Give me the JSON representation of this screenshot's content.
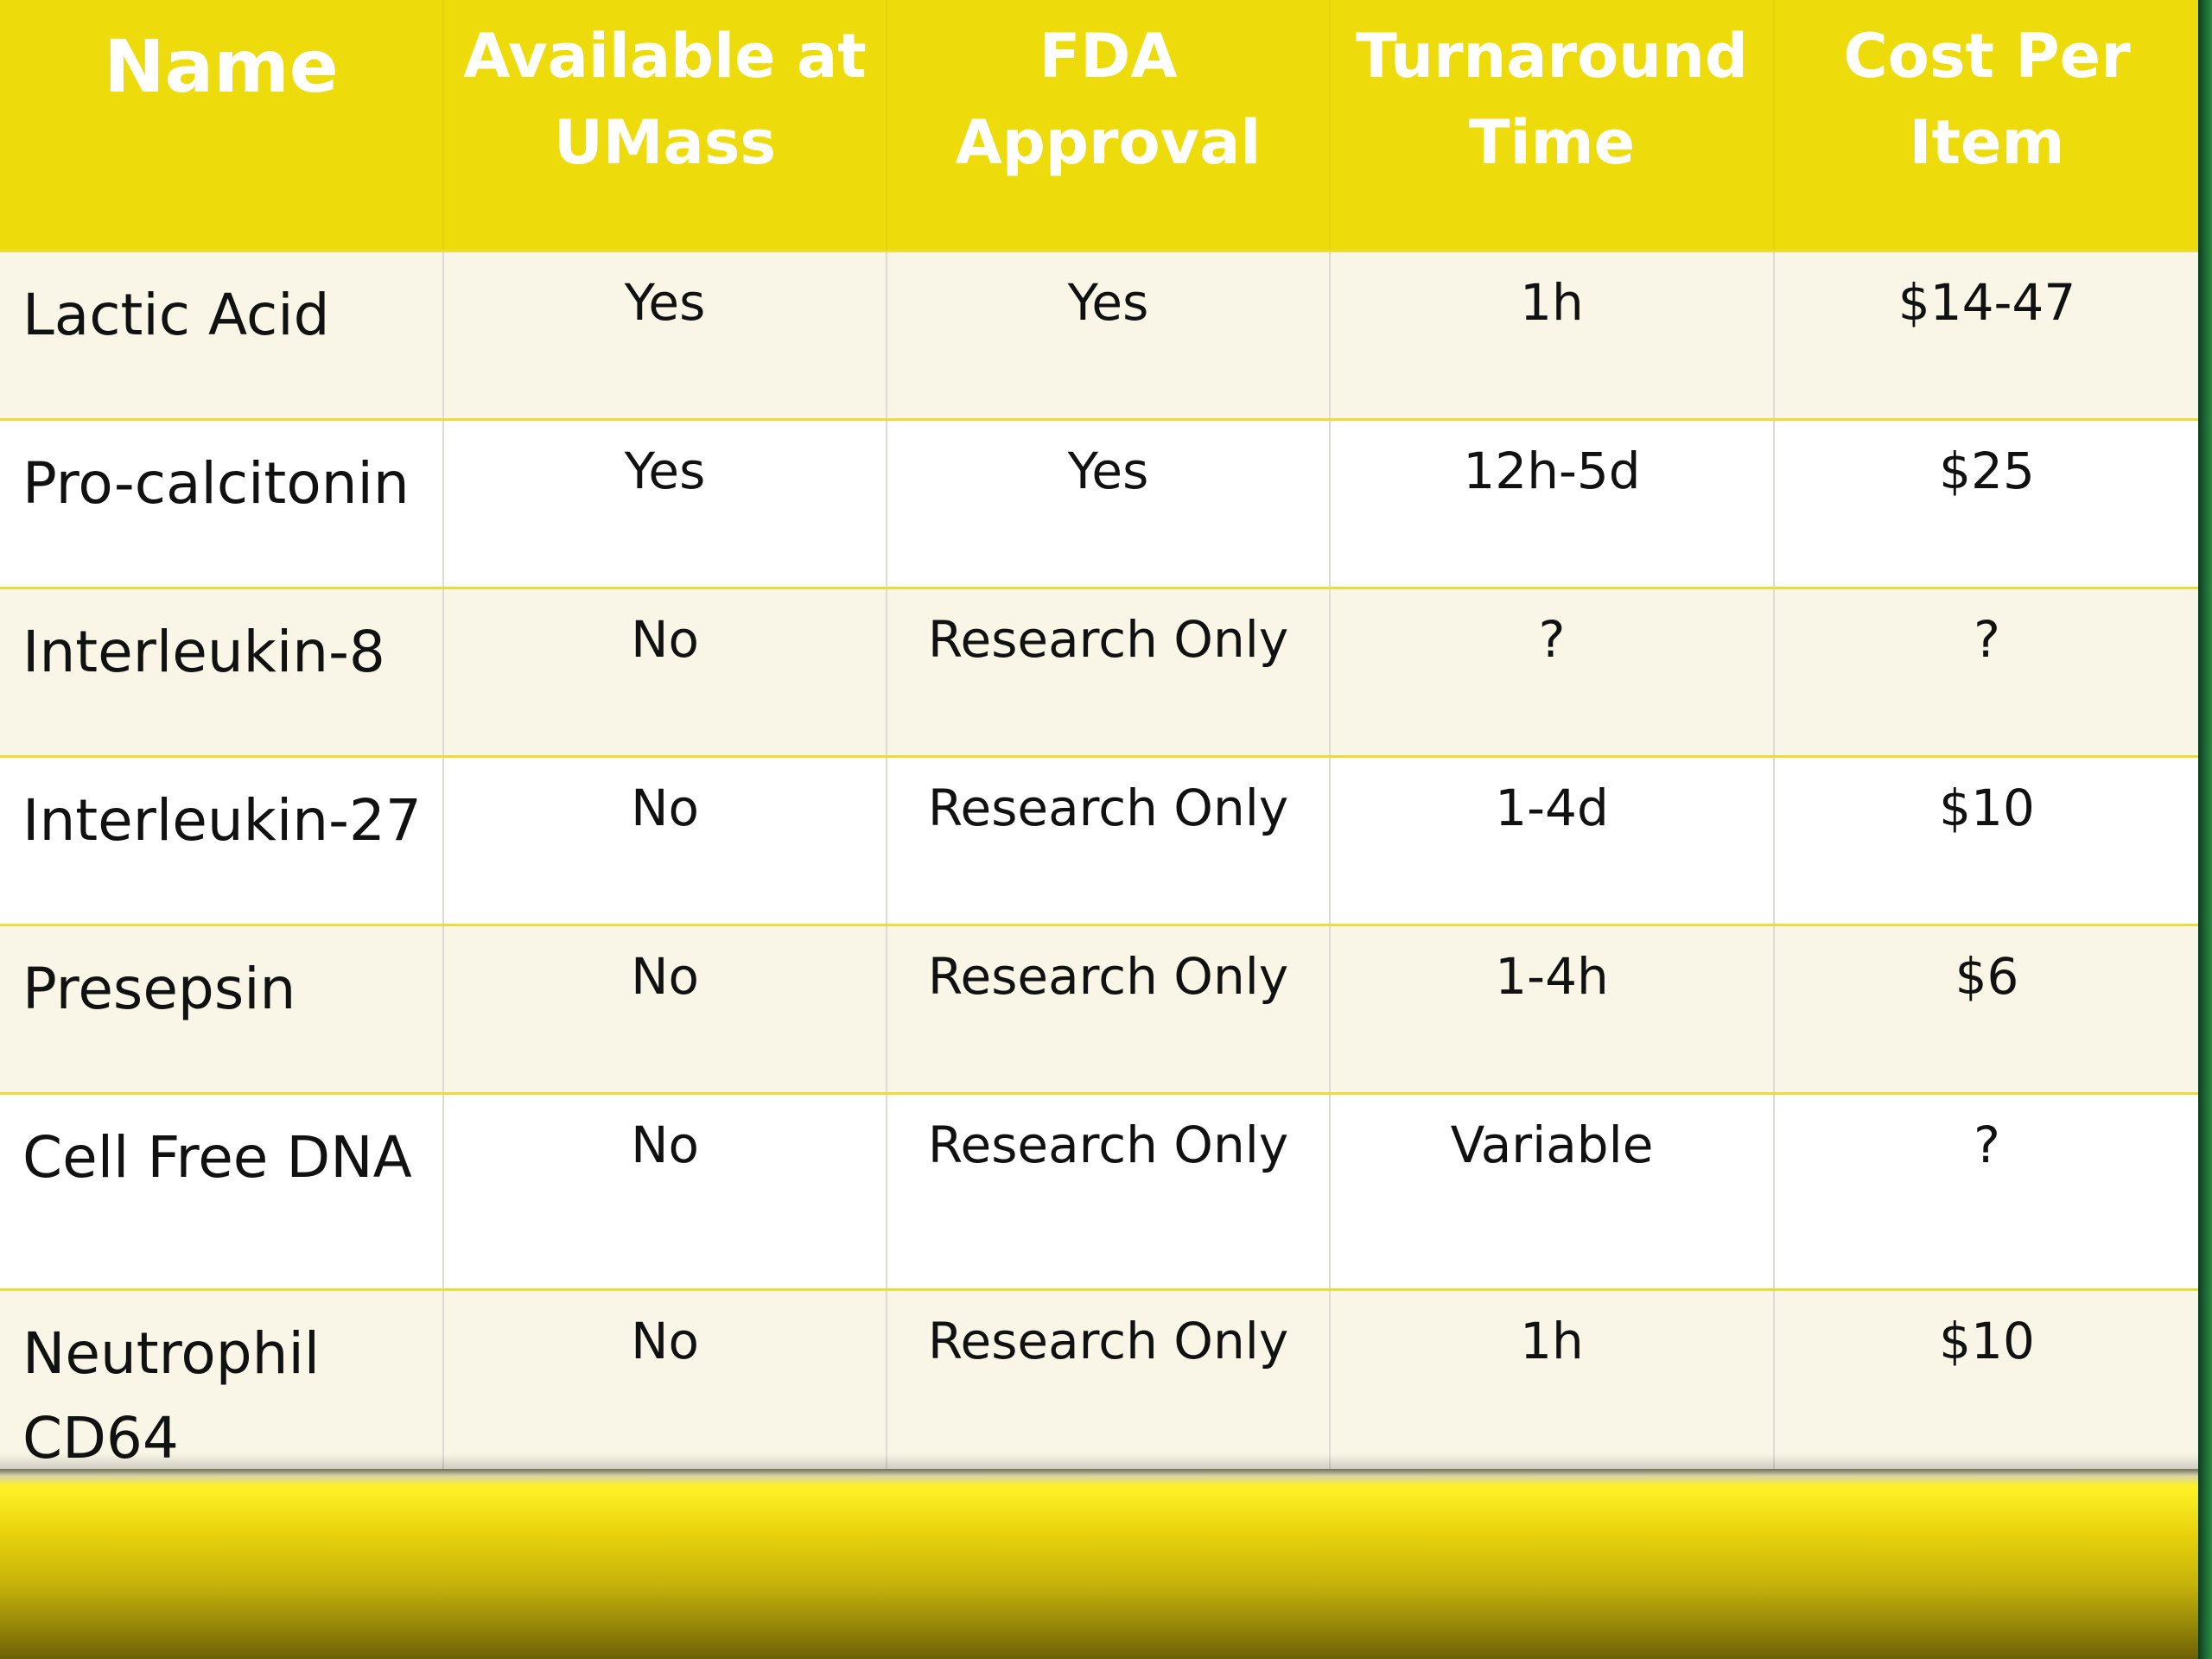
{
  "table": {
    "headers": [
      "Name",
      "Available at\nUMass",
      "FDA\nApproval",
      "Turnaround\nTime",
      "Cost Per\nItem"
    ],
    "rows": [
      [
        "Lactic Acid",
        "Yes",
        "Yes",
        "1h",
        "$14-47"
      ],
      [
        "Pro-calcitonin",
        "Yes",
        "Yes",
        "12h-5d",
        "$25"
      ],
      [
        "Interleukin-8",
        "No",
        "Research Only",
        "?",
        "?"
      ],
      [
        "Interleukin-27",
        "No",
        "Research Only",
        "1-4d",
        "$10"
      ],
      [
        "Presepsin",
        "No",
        "Research Only",
        "1-4h",
        "$6"
      ],
      [
        "Cell Free DNA",
        "No",
        "Research Only",
        "Variable",
        "?"
      ],
      [
        "Neutrophil CD64",
        "No",
        "Research Only",
        "1h",
        "$10"
      ]
    ]
  },
  "colors": {
    "header_bg": "#eedb0c",
    "header_text": "#ffffff",
    "band_row_bg": "#f9f6e7",
    "row_divider": "#eedb3a",
    "side_bar_green": "#1f6b34"
  }
}
